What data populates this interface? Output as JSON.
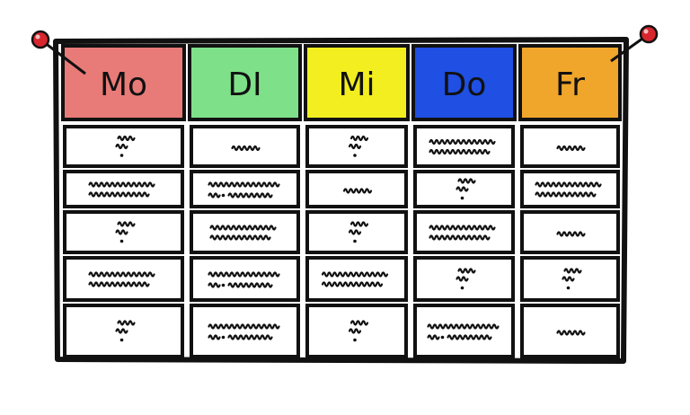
{
  "days": [
    {
      "label": "Mo",
      "color": "#e87b78"
    },
    {
      "label": "DI",
      "color": "#7fe08a"
    },
    {
      "label": "Mi",
      "color": "#f2ee1f"
    },
    {
      "label": "Do",
      "color": "#1f4fe3"
    },
    {
      "label": "Fr",
      "color": "#f0a62b"
    }
  ],
  "pin_color": "#d8262e",
  "cell_patterns": [
    [
      "stack",
      "word",
      "stack",
      "long",
      "word"
    ],
    [
      "long",
      "longdot",
      "word",
      "stack",
      "long"
    ],
    [
      "stack",
      "long",
      "stack",
      "long",
      "word"
    ],
    [
      "long",
      "longdot",
      "long",
      "stack",
      "stack"
    ],
    [
      "stack",
      "longdot",
      "stack",
      "longdot",
      "word"
    ]
  ]
}
